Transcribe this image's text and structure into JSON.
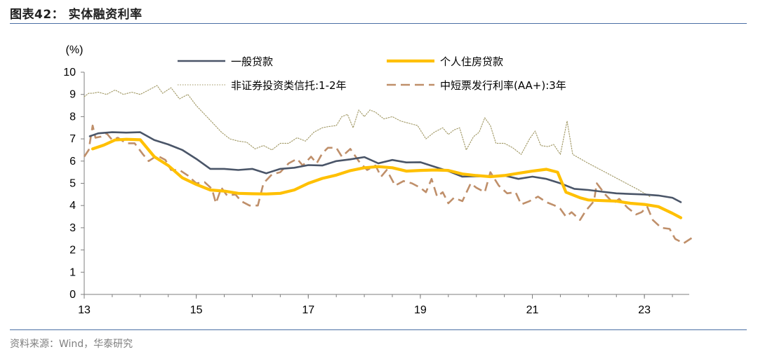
{
  "header": {
    "title": "图表42：  实体融资利率"
  },
  "footer": {
    "source": "资料来源：Wind，华泰研究"
  },
  "colors": {
    "general_loan": "#4a5568",
    "housing_loan": "#ffc000",
    "trust": "#9e9560",
    "bond": "#bf8f6a",
    "rule": "#4a6ea4"
  },
  "chart_data": {
    "type": "line",
    "unit_label": "(%)",
    "ylim": [
      0,
      10
    ],
    "y_ticks": [
      "0",
      "1",
      "2",
      "3",
      "4",
      "5",
      "6",
      "7",
      "8",
      "9",
      "10"
    ],
    "xlim": [
      2013,
      2023.8
    ],
    "x_ticks": [
      {
        "value": 2013,
        "label": "13"
      },
      {
        "value": 2015,
        "label": "15"
      },
      {
        "value": 2017,
        "label": "17"
      },
      {
        "value": 2019,
        "label": "19"
      },
      {
        "value": 2021,
        "label": "21"
      },
      {
        "value": 2023,
        "label": "23"
      }
    ],
    "grid": false,
    "legend": "top",
    "series": [
      {
        "name": "一般贷款",
        "style": "solid-thin",
        "color": "#4a5568",
        "points": [
          [
            2013.1,
            7.12
          ],
          [
            2013.25,
            7.25
          ],
          [
            2013.5,
            7.3
          ],
          [
            2013.75,
            7.28
          ],
          [
            2014.0,
            7.3
          ],
          [
            2014.25,
            6.95
          ],
          [
            2014.5,
            6.75
          ],
          [
            2014.75,
            6.5
          ],
          [
            2015.0,
            6.1
          ],
          [
            2015.25,
            5.65
          ],
          [
            2015.5,
            5.65
          ],
          [
            2015.75,
            5.6
          ],
          [
            2016.0,
            5.65
          ],
          [
            2016.25,
            5.45
          ],
          [
            2016.5,
            5.65
          ],
          [
            2016.75,
            5.7
          ],
          [
            2017.0,
            5.82
          ],
          [
            2017.25,
            5.8
          ],
          [
            2017.5,
            6.0
          ],
          [
            2017.75,
            6.08
          ],
          [
            2018.0,
            6.18
          ],
          [
            2018.25,
            5.9
          ],
          [
            2018.5,
            6.05
          ],
          [
            2018.75,
            5.94
          ],
          [
            2019.0,
            5.95
          ],
          [
            2019.25,
            5.75
          ],
          [
            2019.5,
            5.55
          ],
          [
            2019.75,
            5.3
          ],
          [
            2020.0,
            5.32
          ],
          [
            2020.25,
            5.3
          ],
          [
            2020.5,
            5.35
          ],
          [
            2020.75,
            5.2
          ],
          [
            2021.0,
            5.3
          ],
          [
            2021.25,
            5.2
          ],
          [
            2021.5,
            5.0
          ],
          [
            2021.75,
            4.75
          ],
          [
            2022.0,
            4.7
          ],
          [
            2022.25,
            4.62
          ],
          [
            2022.5,
            4.55
          ],
          [
            2022.75,
            4.52
          ],
          [
            2023.0,
            4.5
          ],
          [
            2023.25,
            4.45
          ],
          [
            2023.5,
            4.35
          ],
          [
            2023.65,
            4.15
          ]
        ]
      },
      {
        "name": "个人住房贷款",
        "style": "solid-thick",
        "color": "#ffc000",
        "points": [
          [
            2013.15,
            6.55
          ],
          [
            2013.35,
            6.72
          ],
          [
            2013.55,
            6.95
          ],
          [
            2013.75,
            6.98
          ],
          [
            2014.0,
            6.96
          ],
          [
            2014.25,
            6.2
          ],
          [
            2014.5,
            5.8
          ],
          [
            2014.75,
            5.25
          ],
          [
            2015.0,
            4.95
          ],
          [
            2015.25,
            4.7
          ],
          [
            2015.5,
            4.65
          ],
          [
            2015.75,
            4.55
          ],
          [
            2016.0,
            4.53
          ],
          [
            2016.25,
            4.52
          ],
          [
            2016.5,
            4.55
          ],
          [
            2016.75,
            4.7
          ],
          [
            2017.0,
            5.0
          ],
          [
            2017.25,
            5.22
          ],
          [
            2017.5,
            5.37
          ],
          [
            2017.75,
            5.57
          ],
          [
            2018.0,
            5.7
          ],
          [
            2018.25,
            5.75
          ],
          [
            2018.5,
            5.7
          ],
          [
            2018.75,
            5.55
          ],
          [
            2019.0,
            5.58
          ],
          [
            2019.25,
            5.6
          ],
          [
            2019.5,
            5.58
          ],
          [
            2019.75,
            5.42
          ],
          [
            2020.0,
            5.35
          ],
          [
            2020.25,
            5.3
          ],
          [
            2020.5,
            5.35
          ],
          [
            2020.75,
            5.45
          ],
          [
            2021.0,
            5.55
          ],
          [
            2021.25,
            5.63
          ],
          [
            2021.45,
            5.5
          ],
          [
            2021.6,
            4.6
          ],
          [
            2021.85,
            4.35
          ],
          [
            2022.0,
            4.25
          ],
          [
            2022.25,
            4.22
          ],
          [
            2022.5,
            4.2
          ],
          [
            2022.75,
            4.1
          ],
          [
            2023.0,
            4.05
          ],
          [
            2023.25,
            3.95
          ],
          [
            2023.5,
            3.65
          ],
          [
            2023.65,
            3.45
          ]
        ]
      },
      {
        "name": "非证券投资类信托:1-2年",
        "style": "dotted",
        "color": "#9e9560",
        "points": [
          [
            2013.0,
            8.9
          ],
          [
            2013.08,
            9.05
          ],
          [
            2013.15,
            9.05
          ],
          [
            2013.25,
            9.1
          ],
          [
            2013.4,
            9.0
          ],
          [
            2013.55,
            9.2
          ],
          [
            2013.7,
            9.0
          ],
          [
            2013.85,
            9.1
          ],
          [
            2014.0,
            9.0
          ],
          [
            2014.15,
            9.2
          ],
          [
            2014.3,
            9.4
          ],
          [
            2014.4,
            9.05
          ],
          [
            2014.55,
            9.3
          ],
          [
            2014.7,
            8.8
          ],
          [
            2014.85,
            9.0
          ],
          [
            2015.0,
            8.5
          ],
          [
            2015.15,
            8.1
          ],
          [
            2015.3,
            7.7
          ],
          [
            2015.45,
            7.3
          ],
          [
            2015.6,
            7.0
          ],
          [
            2015.75,
            6.9
          ],
          [
            2015.9,
            6.85
          ],
          [
            2016.05,
            6.55
          ],
          [
            2016.2,
            6.7
          ],
          [
            2016.35,
            6.5
          ],
          [
            2016.5,
            6.8
          ],
          [
            2016.65,
            6.8
          ],
          [
            2016.8,
            7.05
          ],
          [
            2016.95,
            6.9
          ],
          [
            2017.1,
            7.3
          ],
          [
            2017.25,
            7.5
          ],
          [
            2017.35,
            7.55
          ],
          [
            2017.5,
            7.6
          ],
          [
            2017.6,
            8.0
          ],
          [
            2017.7,
            8.1
          ],
          [
            2017.8,
            7.5
          ],
          [
            2017.9,
            8.3
          ],
          [
            2018.0,
            8.0
          ],
          [
            2018.1,
            8.3
          ],
          [
            2018.2,
            8.2
          ],
          [
            2018.35,
            7.9
          ],
          [
            2018.5,
            8.0
          ],
          [
            2018.65,
            7.8
          ],
          [
            2018.8,
            7.7
          ],
          [
            2018.95,
            7.6
          ],
          [
            2019.1,
            7.0
          ],
          [
            2019.25,
            7.3
          ],
          [
            2019.4,
            7.5
          ],
          [
            2019.5,
            7.2
          ],
          [
            2019.6,
            7.4
          ],
          [
            2019.7,
            7.5
          ],
          [
            2019.82,
            6.5
          ],
          [
            2019.95,
            7.1
          ],
          [
            2020.05,
            7.3
          ],
          [
            2020.15,
            7.95
          ],
          [
            2020.25,
            7.6
          ],
          [
            2020.35,
            6.8
          ],
          [
            2020.5,
            6.8
          ],
          [
            2020.65,
            6.6
          ],
          [
            2020.8,
            6.3
          ],
          [
            2020.95,
            7.0
          ],
          [
            2021.05,
            7.35
          ],
          [
            2021.15,
            6.7
          ],
          [
            2021.28,
            6.65
          ],
          [
            2021.38,
            6.75
          ],
          [
            2021.5,
            6.3
          ],
          [
            2021.62,
            7.8
          ],
          [
            2021.72,
            6.3
          ],
          [
            2022.0,
            5.9
          ],
          [
            2022.3,
            5.5
          ],
          [
            2022.6,
            5.1
          ],
          [
            2022.9,
            4.7
          ],
          [
            2023.1,
            4.4
          ]
        ]
      },
      {
        "name": "中短票发行利率(AA+):3年",
        "style": "dashed",
        "color": "#bf8f6a",
        "points": [
          [
            2013.0,
            6.2
          ],
          [
            2013.08,
            6.5
          ],
          [
            2013.15,
            7.6
          ],
          [
            2013.2,
            7.05
          ],
          [
            2013.3,
            7.1
          ],
          [
            2013.4,
            7.25
          ],
          [
            2013.5,
            6.95
          ],
          [
            2013.6,
            7.05
          ],
          [
            2013.75,
            6.8
          ],
          [
            2013.9,
            6.8
          ],
          [
            2014.05,
            6.3
          ],
          [
            2014.15,
            6.0
          ],
          [
            2014.3,
            6.25
          ],
          [
            2014.45,
            6.05
          ],
          [
            2014.55,
            5.6
          ],
          [
            2014.7,
            5.6
          ],
          [
            2014.85,
            5.35
          ],
          [
            2015.0,
            5.0
          ],
          [
            2015.15,
            5.05
          ],
          [
            2015.28,
            4.75
          ],
          [
            2015.35,
            4.1
          ],
          [
            2015.45,
            4.8
          ],
          [
            2015.55,
            4.45
          ],
          [
            2015.7,
            4.5
          ],
          [
            2015.8,
            4.2
          ],
          [
            2015.95,
            4.0
          ],
          [
            2016.1,
            4.0
          ],
          [
            2016.2,
            5.0
          ],
          [
            2016.35,
            5.4
          ],
          [
            2016.5,
            5.5
          ],
          [
            2016.65,
            5.9
          ],
          [
            2016.8,
            6.1
          ],
          [
            2016.9,
            5.8
          ],
          [
            2017.05,
            6.2
          ],
          [
            2017.15,
            5.9
          ],
          [
            2017.25,
            6.35
          ],
          [
            2017.35,
            6.6
          ],
          [
            2017.5,
            6.6
          ],
          [
            2017.6,
            6.2
          ],
          [
            2017.75,
            6.55
          ],
          [
            2017.9,
            6.0
          ],
          [
            2018.05,
            5.6
          ],
          [
            2018.2,
            5.8
          ],
          [
            2018.3,
            5.3
          ],
          [
            2018.4,
            5.6
          ],
          [
            2018.55,
            4.9
          ],
          [
            2018.7,
            5.1
          ],
          [
            2018.85,
            5.0
          ],
          [
            2019.0,
            4.8
          ],
          [
            2019.1,
            4.6
          ],
          [
            2019.2,
            5.2
          ],
          [
            2019.3,
            4.4
          ],
          [
            2019.4,
            4.6
          ],
          [
            2019.5,
            4.1
          ],
          [
            2019.6,
            4.35
          ],
          [
            2019.75,
            4.2
          ],
          [
            2019.9,
            5.0
          ],
          [
            2020.0,
            4.8
          ],
          [
            2020.15,
            4.6
          ],
          [
            2020.25,
            5.5
          ],
          [
            2020.4,
            4.9
          ],
          [
            2020.55,
            4.55
          ],
          [
            2020.7,
            4.6
          ],
          [
            2020.8,
            4.05
          ],
          [
            2020.95,
            4.2
          ],
          [
            2021.1,
            4.4
          ],
          [
            2021.25,
            4.15
          ],
          [
            2021.4,
            4.0
          ],
          [
            2021.5,
            3.85
          ],
          [
            2021.6,
            3.5
          ],
          [
            2021.7,
            3.7
          ],
          [
            2021.85,
            3.35
          ],
          [
            2021.95,
            3.75
          ],
          [
            2022.1,
            4.2
          ],
          [
            2022.15,
            5.0
          ],
          [
            2022.3,
            4.5
          ],
          [
            2022.45,
            4.1
          ],
          [
            2022.55,
            4.3
          ],
          [
            2022.7,
            3.9
          ],
          [
            2022.85,
            3.6
          ],
          [
            2022.95,
            3.7
          ],
          [
            2023.05,
            3.95
          ],
          [
            2023.15,
            3.35
          ],
          [
            2023.3,
            3.0
          ],
          [
            2023.45,
            2.95
          ],
          [
            2023.55,
            2.5
          ],
          [
            2023.7,
            2.3
          ],
          [
            2023.85,
            2.55
          ]
        ]
      }
    ]
  }
}
